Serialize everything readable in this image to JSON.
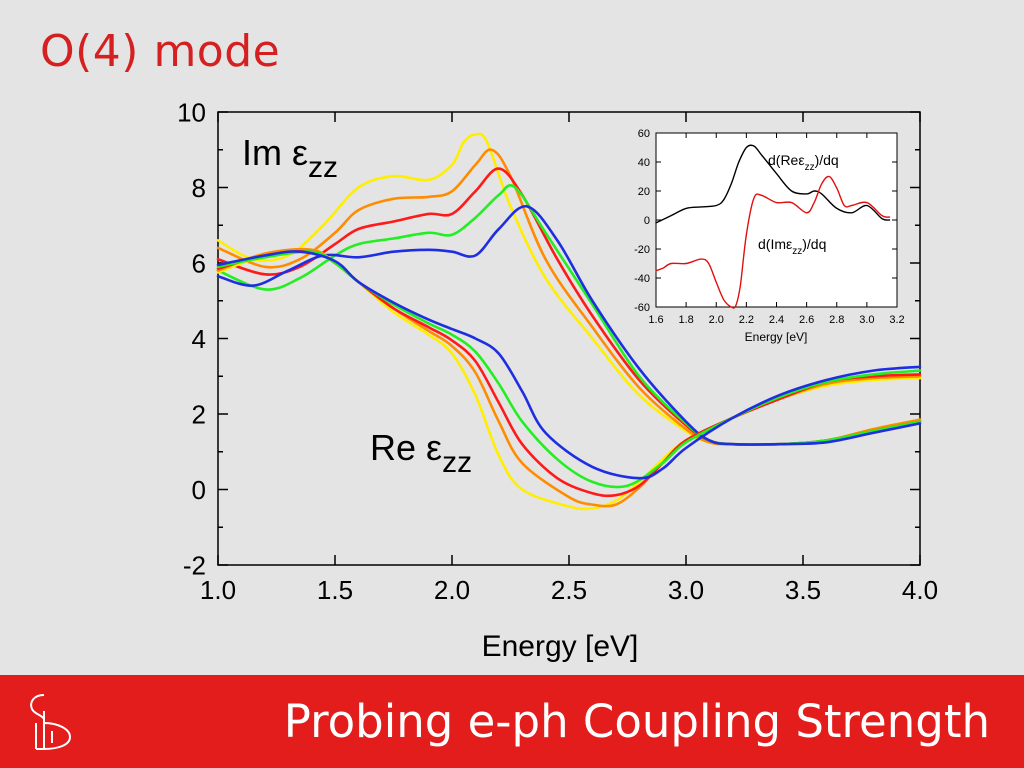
{
  "slide": {
    "title": "O(4) mode",
    "footer_title": "Probing e-ph Coupling Strength",
    "logo_icon": "institution-logo-icon",
    "colors": {
      "title": "#d42020",
      "footer": "#e31c1c",
      "background": "#e4e4e4"
    }
  },
  "chart_data": [
    {
      "type": "line",
      "xlabel": "Energy [eV]",
      "ylabel": "",
      "xlim": [
        1.0,
        4.0
      ],
      "ylim": [
        -2,
        10
      ],
      "xticks": [
        "1.0",
        "1.5",
        "2.0",
        "2.5",
        "3.0",
        "3.5",
        "4.0"
      ],
      "yticks": [
        "-2",
        "0",
        "2",
        "4",
        "6",
        "8",
        "10"
      ],
      "grid": false,
      "annotations": [
        {
          "label": "Im ε",
          "sub": "zz",
          "near": "Im curves, upper left"
        },
        {
          "label": "Re ε",
          "sub": "zz",
          "near": "Re curves, lower middle"
        }
      ],
      "series": [
        {
          "color": "#ffee00",
          "group": "Im",
          "x": [
            1.0,
            1.15,
            1.3,
            1.45,
            1.6,
            1.75,
            1.9,
            2.0,
            2.05,
            2.1,
            2.15,
            2.25,
            2.4,
            2.6,
            2.8,
            3.0,
            3.1,
            3.2,
            3.4,
            3.6,
            3.8,
            4.0
          ],
          "y": [
            6.6,
            6.1,
            6.2,
            7.0,
            8.0,
            8.3,
            8.2,
            8.6,
            9.2,
            9.4,
            9.2,
            7.5,
            5.6,
            4.0,
            2.5,
            1.55,
            1.25,
            1.2,
            1.2,
            1.3,
            1.6,
            1.85
          ]
        },
        {
          "color": "#ff8c00",
          "group": "Im",
          "x": [
            1.0,
            1.2,
            1.35,
            1.5,
            1.6,
            1.75,
            1.9,
            2.0,
            2.1,
            2.17,
            2.25,
            2.4,
            2.6,
            2.8,
            3.0,
            3.1,
            3.2,
            3.4,
            3.6,
            3.8,
            4.0
          ],
          "y": [
            6.4,
            5.9,
            6.1,
            6.8,
            7.4,
            7.7,
            7.75,
            7.9,
            8.6,
            9.0,
            8.3,
            6.1,
            4.3,
            2.7,
            1.6,
            1.25,
            1.2,
            1.2,
            1.3,
            1.6,
            1.85
          ]
        },
        {
          "color": "#ff1a1a",
          "group": "Im",
          "x": [
            1.0,
            1.2,
            1.35,
            1.5,
            1.6,
            1.75,
            1.9,
            2.0,
            2.1,
            2.2,
            2.3,
            2.45,
            2.6,
            2.8,
            3.0,
            3.1,
            3.2,
            3.4,
            3.6,
            3.8,
            4.0
          ],
          "y": [
            6.1,
            5.7,
            5.9,
            6.5,
            6.9,
            7.1,
            7.3,
            7.3,
            7.9,
            8.5,
            7.8,
            6.1,
            4.6,
            2.9,
            1.7,
            1.3,
            1.2,
            1.2,
            1.3,
            1.55,
            1.8
          ]
        },
        {
          "color": "#22ee22",
          "group": "Im",
          "x": [
            1.0,
            1.2,
            1.35,
            1.5,
            1.6,
            1.75,
            1.9,
            2.0,
            2.1,
            2.2,
            2.27,
            2.4,
            2.6,
            2.8,
            3.0,
            3.1,
            3.2,
            3.4,
            3.6,
            3.8,
            4.0
          ],
          "y": [
            5.8,
            5.3,
            5.6,
            6.2,
            6.5,
            6.65,
            6.8,
            6.75,
            7.2,
            7.8,
            8.0,
            6.8,
            4.9,
            3.0,
            1.75,
            1.3,
            1.2,
            1.2,
            1.3,
            1.55,
            1.8
          ]
        },
        {
          "color": "#1e2ee0",
          "group": "Im",
          "x": [
            1.0,
            1.15,
            1.3,
            1.45,
            1.6,
            1.75,
            1.9,
            2.0,
            2.1,
            2.2,
            2.32,
            2.45,
            2.6,
            2.8,
            3.0,
            3.1,
            3.2,
            3.4,
            3.6,
            3.8,
            4.0
          ],
          "y": [
            5.65,
            5.4,
            5.8,
            6.2,
            6.15,
            6.3,
            6.35,
            6.3,
            6.2,
            6.9,
            7.5,
            6.6,
            5.0,
            3.2,
            1.8,
            1.3,
            1.2,
            1.2,
            1.25,
            1.5,
            1.75
          ]
        },
        {
          "color": "#ffee00",
          "group": "Re",
          "x": [
            1.0,
            1.2,
            1.4,
            1.5,
            1.6,
            1.75,
            1.9,
            2.0,
            2.1,
            2.2,
            2.3,
            2.5,
            2.6,
            2.7,
            2.8,
            2.9,
            3.0,
            3.2,
            3.4,
            3.6,
            3.8,
            4.0
          ],
          "y": [
            5.75,
            6.2,
            6.35,
            6.0,
            5.5,
            4.7,
            4.1,
            3.6,
            2.5,
            0.9,
            0.0,
            -0.45,
            -0.5,
            -0.3,
            0.2,
            0.8,
            1.3,
            1.9,
            2.4,
            2.75,
            2.9,
            2.95
          ]
        },
        {
          "color": "#ff8c00",
          "group": "Re",
          "x": [
            1.0,
            1.2,
            1.4,
            1.5,
            1.6,
            1.75,
            1.9,
            2.0,
            2.1,
            2.2,
            2.3,
            2.5,
            2.6,
            2.7,
            2.8,
            2.9,
            3.0,
            3.2,
            3.4,
            3.6,
            3.8,
            4.0
          ],
          "y": [
            5.8,
            6.25,
            6.35,
            6.0,
            5.5,
            4.8,
            4.2,
            3.8,
            3.1,
            1.8,
            0.7,
            -0.2,
            -0.4,
            -0.4,
            0.05,
            0.7,
            1.3,
            1.9,
            2.4,
            2.8,
            2.95,
            3.0
          ]
        },
        {
          "color": "#ff1a1a",
          "group": "Re",
          "x": [
            1.0,
            1.2,
            1.4,
            1.5,
            1.6,
            1.75,
            1.9,
            2.0,
            2.1,
            2.2,
            2.3,
            2.45,
            2.6,
            2.7,
            2.8,
            2.9,
            3.0,
            3.2,
            3.4,
            3.6,
            3.8,
            4.0
          ],
          "y": [
            5.85,
            6.2,
            6.3,
            6.0,
            5.5,
            4.8,
            4.3,
            3.95,
            3.4,
            2.3,
            1.2,
            0.3,
            -0.1,
            -0.15,
            0.1,
            0.7,
            1.3,
            1.9,
            2.4,
            2.85,
            3.0,
            3.05
          ]
        },
        {
          "color": "#22ee22",
          "group": "Re",
          "x": [
            1.0,
            1.2,
            1.4,
            1.5,
            1.6,
            1.75,
            1.9,
            2.0,
            2.1,
            2.2,
            2.3,
            2.45,
            2.6,
            2.75,
            2.9,
            3.0,
            3.2,
            3.4,
            3.6,
            3.8,
            4.0
          ],
          "y": [
            5.9,
            6.15,
            6.3,
            6.0,
            5.5,
            4.9,
            4.4,
            4.1,
            3.65,
            2.8,
            1.8,
            0.8,
            0.2,
            0.1,
            0.7,
            1.25,
            1.9,
            2.45,
            2.85,
            3.05,
            3.15
          ]
        },
        {
          "color": "#1e2ee0",
          "group": "Re",
          "x": [
            1.0,
            1.2,
            1.35,
            1.5,
            1.6,
            1.75,
            1.9,
            2.0,
            2.1,
            2.2,
            2.3,
            2.4,
            2.6,
            2.8,
            2.9,
            3.0,
            3.2,
            3.4,
            3.6,
            3.8,
            4.0
          ],
          "y": [
            5.95,
            6.2,
            6.3,
            6.05,
            5.5,
            4.95,
            4.5,
            4.25,
            4.0,
            3.6,
            2.6,
            1.5,
            0.6,
            0.3,
            0.55,
            1.1,
            1.9,
            2.5,
            2.9,
            3.15,
            3.25
          ]
        }
      ]
    },
    {
      "type": "line",
      "xlabel": "Energy [eV]",
      "ylabel": "",
      "xlim": [
        1.6,
        3.2
      ],
      "ylim": [
        -60,
        60
      ],
      "xticks": [
        "1.6",
        "1.8",
        "2.0",
        "2.2",
        "2.4",
        "2.6",
        "2.8",
        "3.0",
        "3.2"
      ],
      "yticks": [
        "-60",
        "-40",
        "-20",
        "0",
        "20",
        "40",
        "60"
      ],
      "grid": false,
      "annotations": [
        {
          "label": "d(Reε",
          "sub": "zz",
          "tail": ")/dq",
          "near": "black curve"
        },
        {
          "label": "d(Imε",
          "sub": "zz",
          "tail": ")/dq",
          "near": "red curve"
        }
      ],
      "series": [
        {
          "color": "#000000",
          "x": [
            1.6,
            1.7,
            1.8,
            1.9,
            2.0,
            2.05,
            2.1,
            2.15,
            2.2,
            2.25,
            2.3,
            2.4,
            2.5,
            2.6,
            2.65,
            2.7,
            2.8,
            2.9,
            3.0,
            3.1,
            3.15
          ],
          "y": [
            -2,
            3,
            8,
            9,
            10,
            14,
            25,
            40,
            50,
            51,
            45,
            32,
            20,
            18,
            20,
            18,
            8,
            5,
            10,
            1,
            0
          ]
        },
        {
          "color": "#e01010",
          "x": [
            1.6,
            1.65,
            1.7,
            1.8,
            1.9,
            1.95,
            2.0,
            2.05,
            2.1,
            2.13,
            2.16,
            2.2,
            2.25,
            2.3,
            2.4,
            2.5,
            2.6,
            2.65,
            2.7,
            2.75,
            2.8,
            2.85,
            2.9,
            3.0,
            3.1,
            3.15
          ],
          "y": [
            -35,
            -33,
            -30,
            -30,
            -27,
            -30,
            -43,
            -55,
            -60,
            -59,
            -45,
            -10,
            15,
            17,
            12,
            12,
            5,
            12,
            25,
            30,
            22,
            10,
            10,
            12,
            3,
            2
          ]
        }
      ]
    }
  ]
}
